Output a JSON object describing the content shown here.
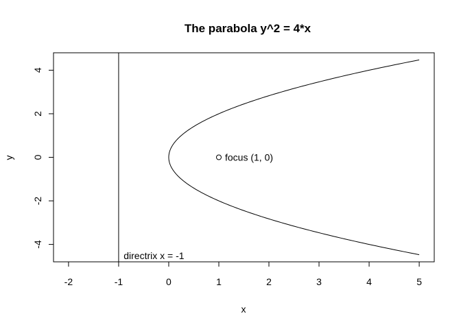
{
  "chart_data": {
    "type": "line",
    "title": "The parabola y^2 = 4*x",
    "xlabel": "x",
    "ylabel": "y",
    "xlim": [
      -2.3,
      5.3
    ],
    "ylim": [
      -4.8,
      4.8
    ],
    "xticks": [
      -2,
      -1,
      0,
      1,
      2,
      3,
      4,
      5
    ],
    "yticks": [
      -4,
      -2,
      0,
      2,
      4
    ],
    "grid": false,
    "series": [
      {
        "kind": "parametric",
        "equation": "y^2 = 4*x",
        "t_range": [
          -4.472,
          4.472
        ],
        "color": "#000000"
      }
    ],
    "directrix": {
      "x": -1,
      "label": "directrix x = -1",
      "color": "#000000"
    },
    "focus": {
      "x": 1,
      "y": 0,
      "label": "focus (1, 0)"
    }
  }
}
